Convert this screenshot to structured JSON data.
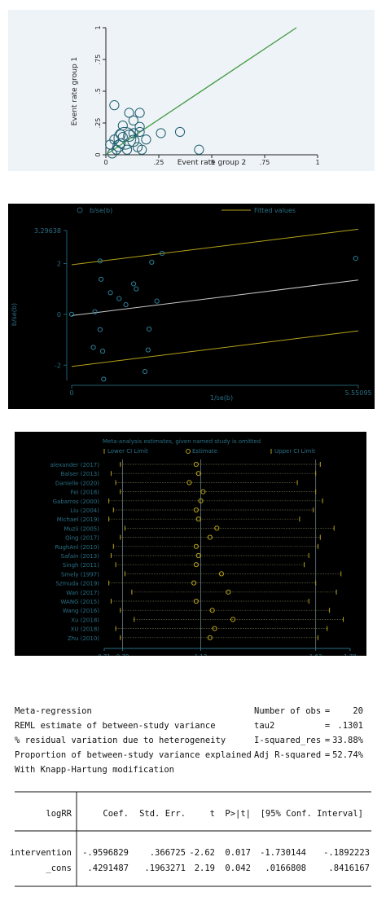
{
  "colors": {
    "fit_green": "#3f9a3f",
    "teal": "#1f5e6e",
    "olive": "#b5a21a",
    "dark_bg": "#000000",
    "light_bg": "#eef3f7"
  },
  "chart_data": [
    {
      "type": "scatter",
      "xlabel": "Event rate group 2",
      "ylabel": "Event rate group 1",
      "xlim": [
        0,
        1
      ],
      "ylim": [
        0,
        1
      ],
      "xticks": [
        "0",
        ".25",
        ".5",
        ".75",
        "1"
      ],
      "yticks": [
        "0",
        ".25",
        ".5",
        ".75",
        "1"
      ],
      "points": [
        {
          "x": 0.03,
          "y": 0.01,
          "size": 2
        },
        {
          "x": 0.05,
          "y": 0.04,
          "size": 2
        },
        {
          "x": 0.06,
          "y": 0.07,
          "size": 3
        },
        {
          "x": 0.07,
          "y": 0.09,
          "size": 2
        },
        {
          "x": 0.04,
          "y": 0.12,
          "size": 2
        },
        {
          "x": 0.02,
          "y": 0.08,
          "size": 2
        },
        {
          "x": 0.09,
          "y": 0.13,
          "size": 8
        },
        {
          "x": 0.13,
          "y": 0.11,
          "size": 3
        },
        {
          "x": 0.15,
          "y": 0.06,
          "size": 2
        },
        {
          "x": 0.17,
          "y": 0.04,
          "size": 2
        },
        {
          "x": 0.19,
          "y": 0.12,
          "size": 2
        },
        {
          "x": 0.16,
          "y": 0.18,
          "size": 2
        },
        {
          "x": 0.16,
          "y": 0.22,
          "size": 2
        },
        {
          "x": 0.13,
          "y": 0.27,
          "size": 2
        },
        {
          "x": 0.16,
          "y": 0.33,
          "size": 2
        },
        {
          "x": 0.11,
          "y": 0.33,
          "size": 2
        },
        {
          "x": 0.08,
          "y": 0.23,
          "size": 2
        },
        {
          "x": 0.04,
          "y": 0.39,
          "size": 2
        },
        {
          "x": 0.07,
          "y": 0.16,
          "size": 2
        },
        {
          "x": 0.08,
          "y": 0.14,
          "size": 2
        },
        {
          "x": 0.11,
          "y": 0.15,
          "size": 3
        },
        {
          "x": 0.13,
          "y": 0.17,
          "size": 2
        },
        {
          "x": 0.1,
          "y": 0.04,
          "size": 2
        },
        {
          "x": 0.35,
          "y": 0.18,
          "size": 2
        },
        {
          "x": 0.26,
          "y": 0.17,
          "size": 2
        },
        {
          "x": 0.44,
          "y": 0.04,
          "size": 2
        }
      ],
      "fit_line": [
        [
          0.0,
          0.0
        ],
        [
          0.9,
          1.0
        ]
      ],
      "grid": false
    },
    {
      "type": "scatter",
      "xlabel": "1/se(b)",
      "ylabel": "b/se(b)",
      "legend": [
        "b/se(b)",
        "Fitted values"
      ],
      "legend_position": "top",
      "xlim": [
        0,
        5.55095
      ],
      "ylim": [
        -2.6,
        3.29638
      ],
      "xtick_labels": [
        {
          "v": 0,
          "t": "0"
        },
        {
          "v": 5.55095,
          "t": "5.55095"
        }
      ],
      "ytick_labels": [
        {
          "v": -2,
          "t": "-2"
        },
        {
          "v": 0,
          "t": "0"
        },
        {
          "v": 2,
          "t": "2"
        },
        {
          "v": 3.29638,
          "t": "3.29638"
        }
      ],
      "points": [
        {
          "x": 0.0,
          "y": 0.0
        },
        {
          "x": 0.55,
          "y": 2.1
        },
        {
          "x": 0.57,
          "y": 1.38
        },
        {
          "x": 0.45,
          "y": 0.1
        },
        {
          "x": 0.55,
          "y": -0.6
        },
        {
          "x": 0.42,
          "y": -1.3
        },
        {
          "x": 0.6,
          "y": -1.45
        },
        {
          "x": 0.62,
          "y": -2.55
        },
        {
          "x": 0.75,
          "y": 0.85
        },
        {
          "x": 0.92,
          "y": 0.62
        },
        {
          "x": 1.05,
          "y": 0.38
        },
        {
          "x": 1.2,
          "y": 1.2
        },
        {
          "x": 1.25,
          "y": 1.0
        },
        {
          "x": 1.5,
          "y": -0.58
        },
        {
          "x": 1.48,
          "y": -1.4
        },
        {
          "x": 1.42,
          "y": -2.25
        },
        {
          "x": 1.55,
          "y": 2.05
        },
        {
          "x": 1.65,
          "y": 0.52
        },
        {
          "x": 1.75,
          "y": 2.4
        },
        {
          "x": 5.5,
          "y": 2.2
        }
      ],
      "fit_line": [
        [
          0,
          -0.05
        ],
        [
          5.55095,
          1.35
        ]
      ],
      "ci_upper": [
        [
          0,
          1.95
        ],
        [
          5.55095,
          3.35
        ]
      ],
      "ci_lower": [
        [
          0,
          -2.05
        ],
        [
          5.55095,
          -0.65
        ]
      ],
      "grid": false
    },
    {
      "type": "forest",
      "title": "Meta-analysis estimates, given named study is omitted",
      "legend": [
        "Lower CI Limit",
        "Estimate",
        "Upper CI Limit"
      ],
      "legend_position": "top",
      "xlim": [
        0.71,
        1.78
      ],
      "xticks": [
        0.71,
        0.79,
        1.13,
        1.63,
        1.78
      ],
      "reference_lines": [
        0.79,
        1.13,
        1.63
      ],
      "studies": [
        {
          "name": "alexander (2017)",
          "lower": 0.78,
          "est": 1.11,
          "upper": 1.65
        },
        {
          "name": "Balser (2013)",
          "lower": 0.74,
          "est": 1.12,
          "upper": 1.63
        },
        {
          "name": "Danielle (2020)",
          "lower": 0.76,
          "est": 1.08,
          "upper": 1.55
        },
        {
          "name": "Fei (2018)",
          "lower": 0.78,
          "est": 1.14,
          "upper": 1.63
        },
        {
          "name": "Gabarros (2000)",
          "lower": 0.73,
          "est": 1.13,
          "upper": 1.66
        },
        {
          "name": "Liu (2004)",
          "lower": 0.75,
          "est": 1.11,
          "upper": 1.62
        },
        {
          "name": "Michael (2019)",
          "lower": 0.73,
          "est": 1.12,
          "upper": 1.56
        },
        {
          "name": "Muzii (2005)",
          "lower": 0.8,
          "est": 1.2,
          "upper": 1.71
        },
        {
          "name": "Qing (2017)",
          "lower": 0.78,
          "est": 1.17,
          "upper": 1.65
        },
        {
          "name": "RughAnl (2010)",
          "lower": 0.75,
          "est": 1.11,
          "upper": 1.64
        },
        {
          "name": "Safain (2013)",
          "lower": 0.74,
          "est": 1.12,
          "upper": 1.6
        },
        {
          "name": "Singh (2011)",
          "lower": 0.76,
          "est": 1.11,
          "upper": 1.58
        },
        {
          "name": "Smely (1997)",
          "lower": 0.8,
          "est": 1.22,
          "upper": 1.74
        },
        {
          "name": "Szmuda (2019)",
          "lower": 0.73,
          "est": 1.1,
          "upper": 1.63
        },
        {
          "name": "Wan (2017)",
          "lower": 0.83,
          "est": 1.25,
          "upper": 1.72
        },
        {
          "name": "WANG (2015)",
          "lower": 0.74,
          "est": 1.11,
          "upper": 1.6
        },
        {
          "name": "Wang (2016)",
          "lower": 0.78,
          "est": 1.18,
          "upper": 1.69
        },
        {
          "name": "Xu (2018)",
          "lower": 0.84,
          "est": 1.27,
          "upper": 1.75
        },
        {
          "name": "XU (2018)",
          "lower": 0.76,
          "est": 1.19,
          "upper": 1.68
        },
        {
          "name": "Zhu (2010)",
          "lower": 0.78,
          "est": 1.17,
          "upper": 1.64
        }
      ]
    },
    {
      "type": "table",
      "title": "Meta-regression",
      "lines": [
        {
          "label": "Meta-regression",
          "stat": "Number of obs",
          "eq": "=",
          "val": "20"
        },
        {
          "label": "REML estimate of between-study variance",
          "stat": "tau2",
          "eq": "=",
          "val": ".1301"
        },
        {
          "label": "% residual variation due to heterogeneity",
          "stat": "I-squared_res",
          "eq": "=",
          "val": "33.88%"
        },
        {
          "label": "Proportion of between-study variance explained",
          "stat": "Adj R-squared",
          "eq": "=",
          "val": "52.74%"
        },
        {
          "label": "With Knapp-Hartung modification",
          "stat": "",
          "eq": "",
          "val": ""
        }
      ],
      "columns": [
        "logRR",
        "Coef.",
        "Std. Err.",
        "t",
        "P>|t|",
        "[95% Conf. Interval]"
      ],
      "rows": [
        [
          "intervention",
          "-.9596829",
          ".366725",
          "-2.62",
          "0.017",
          "-1.730144",
          "-.1892223"
        ],
        [
          "_cons",
          ".4291487",
          ".1963271",
          "2.19",
          "0.042",
          ".0166808",
          ".8416167"
        ]
      ]
    }
  ]
}
